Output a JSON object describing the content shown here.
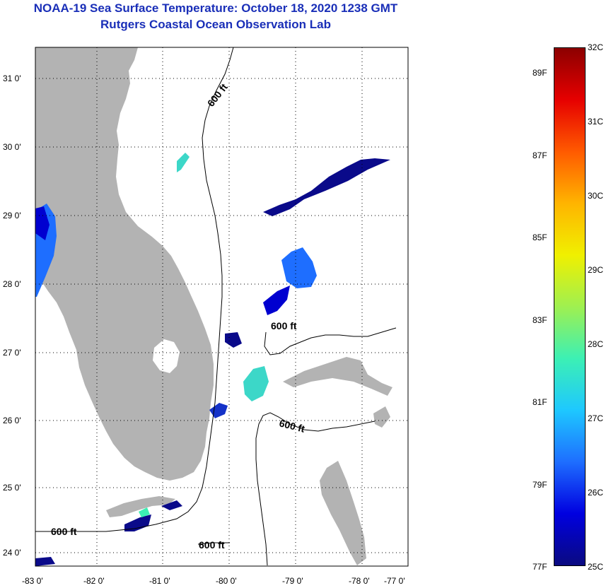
{
  "header": {
    "title": "NOAA-19 Sea Surface Temperature:  October 18, 2020 1238 GMT",
    "subtitle": "Rutgers Coastal Ocean Observation Lab"
  },
  "map": {
    "lon_ticks": [
      "-83 0'",
      "-82 0'",
      "-81 0'",
      "-80 0'",
      "-79 0'",
      "-78 0'",
      "-77 0'"
    ],
    "lat_ticks": [
      "31 0'",
      "30 0'",
      "29 0'",
      "28 0'",
      "27 0'",
      "26 0'",
      "25 0'",
      "24 0'"
    ],
    "contour_labels": [
      "600 ft",
      "600 ft",
      "600 ft",
      "600 ft",
      "600 ft"
    ],
    "colors": {
      "land": "#b3b3b3",
      "cloud": "#ffffff",
      "contour": "#000000"
    }
  },
  "colorbar": {
    "min_c": 25,
    "max_c": 32,
    "celsius_labels": [
      "32C",
      "31C",
      "30C",
      "29C",
      "28C",
      "27C",
      "26C",
      "25C"
    ],
    "fahrenheit_labels": [
      "89F",
      "87F",
      "85F",
      "83F",
      "81F",
      "79F",
      "77F"
    ],
    "colors": [
      "#0a0a80",
      "#0000e0",
      "#1e6eff",
      "#1ec8ff",
      "#3cf0b4",
      "#9ff050",
      "#f0f000",
      "#ffb400",
      "#ff5a00",
      "#e60000",
      "#8c0000"
    ]
  }
}
